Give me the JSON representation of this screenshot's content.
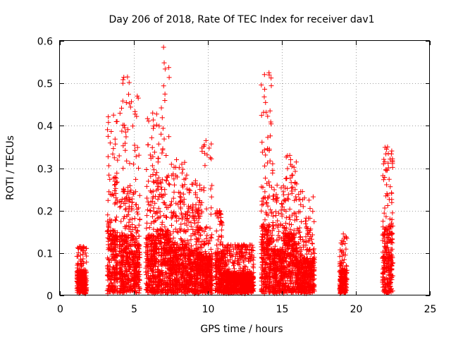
{
  "chart_data": {
    "type": "scatter",
    "title": "Day 206 of 2018, Rate Of TEC Index for receiver dav1",
    "xlabel": "GPS time / hours",
    "ylabel": "ROTI / TECUs",
    "xlim": [
      0,
      25
    ],
    "ylim": [
      0,
      0.6
    ],
    "x_ticks": [
      0,
      5,
      10,
      15,
      20,
      25
    ],
    "x_tick_labels": [
      "0",
      "5",
      "10",
      "15",
      "20",
      "25"
    ],
    "y_ticks": [
      0,
      0.1,
      0.2,
      0.3,
      0.4,
      0.5,
      0.6
    ],
    "y_tick_labels": [
      "0",
      "0.1",
      "0.2",
      "0.3",
      "0.4",
      "0.5",
      "0.6"
    ],
    "grid": true,
    "marker": "+",
    "color": "#ff0000",
    "segments": [
      {
        "start": 1.15,
        "end": 1.8,
        "peak": 0.11,
        "max": 0.115
      },
      {
        "start": 3.2,
        "end": 3.9,
        "peak": 0.28,
        "max": 0.425
      },
      {
        "start": 4.0,
        "end": 5.0,
        "peak": 0.26,
        "max": 0.515
      },
      {
        "start": 5.0,
        "end": 5.4,
        "peak": 0.22,
        "max": 0.47
      },
      {
        "start": 5.8,
        "end": 6.6,
        "peak": 0.26,
        "max": 0.43
      },
      {
        "start": 6.6,
        "end": 7.4,
        "peak": 0.28,
        "max": 0.585
      },
      {
        "start": 7.4,
        "end": 8.6,
        "peak": 0.22,
        "max": 0.32
      },
      {
        "start": 8.6,
        "end": 9.6,
        "peak": 0.2,
        "max": 0.27
      },
      {
        "start": 9.6,
        "end": 10.3,
        "peak": 0.17,
        "max": 0.365
      },
      {
        "start": 10.5,
        "end": 11.0,
        "peak": 0.19,
        "max": 0.2
      },
      {
        "start": 11.0,
        "end": 12.0,
        "peak": 0.1,
        "max": 0.12
      },
      {
        "start": 12.0,
        "end": 13.1,
        "peak": 0.1,
        "max": 0.12
      },
      {
        "start": 13.6,
        "end": 14.4,
        "peak": 0.3,
        "max": 0.525
      },
      {
        "start": 14.4,
        "end": 15.2,
        "peak": 0.2,
        "max": 0.26
      },
      {
        "start": 15.2,
        "end": 16.0,
        "peak": 0.27,
        "max": 0.33
      },
      {
        "start": 16.0,
        "end": 17.2,
        "peak": 0.16,
        "max": 0.245
      },
      {
        "start": 18.9,
        "end": 19.4,
        "peak": 0.11,
        "max": 0.145
      },
      {
        "start": 21.8,
        "end": 22.5,
        "peak": 0.3,
        "max": 0.35
      }
    ]
  }
}
